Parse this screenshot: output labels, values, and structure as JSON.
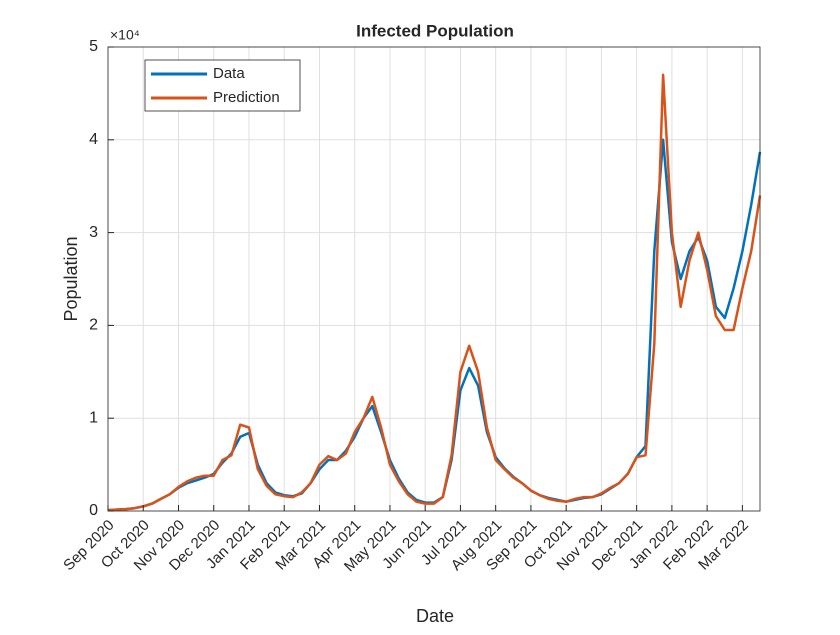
{
  "chart_data": {
    "type": "line",
    "title": "Infected Population",
    "x_label": "Date",
    "y_label": "Population",
    "y_multiplier": "×10⁴",
    "categories": [
      "Sep 2020",
      null,
      null,
      null,
      "Oct 2020",
      null,
      null,
      null,
      "Nov 2020",
      null,
      null,
      null,
      "Dec 2020",
      null,
      null,
      null,
      "Jan 2021",
      null,
      null,
      null,
      "Feb 2021",
      null,
      null,
      null,
      "Mar 2021",
      null,
      null,
      null,
      "Apr 2021",
      null,
      null,
      null,
      "May 2021",
      null,
      null,
      null,
      "Jun 2021",
      null,
      null,
      null,
      "Jul 2021",
      null,
      null,
      null,
      "Aug 2021",
      null,
      null,
      null,
      "Sep 2021",
      null,
      null,
      null,
      "Oct 2021",
      null,
      null,
      null,
      "Nov 2021",
      null,
      null,
      null,
      "Dec 2021",
      null,
      null,
      null,
      "Jan 2022",
      null,
      null,
      null,
      "Feb 2022",
      null,
      null,
      null,
      "Mar 2022",
      null,
      null
    ],
    "series": [
      {
        "name": "Data",
        "color": "#0072BD",
        "values": [
          100,
          150,
          200,
          300,
          500,
          800,
          1300,
          1800,
          2500,
          3000,
          3300,
          3600,
          4000,
          5200,
          6200,
          8000,
          8400,
          5000,
          3000,
          2000,
          1700,
          1600,
          1900,
          3000,
          4500,
          5500,
          5500,
          6500,
          8000,
          10000,
          11300,
          8500,
          5500,
          3500,
          2000,
          1200,
          900,
          900,
          1500,
          5500,
          13000,
          15400,
          13500,
          8500,
          5800,
          4600,
          3700,
          3000,
          2200,
          1700,
          1400,
          1200,
          1000,
          1200,
          1400,
          1500,
          1800,
          2400,
          3000,
          4000,
          5800,
          7000,
          28000,
          40000,
          29000,
          25000,
          28000,
          29500,
          27000,
          22000,
          20800,
          24000,
          28000,
          33000,
          38700
        ]
      },
      {
        "name": "Prediction",
        "color": "#D95319",
        "values": [
          100,
          150,
          200,
          300,
          500,
          800,
          1300,
          1800,
          2600,
          3200,
          3600,
          3800,
          3800,
          5500,
          6000,
          9300,
          9000,
          4500,
          2700,
          1800,
          1600,
          1500,
          2000,
          3000,
          5000,
          5900,
          5500,
          6200,
          8500,
          10000,
          12300,
          9000,
          5000,
          3200,
          1800,
          1000,
          800,
          800,
          1500,
          6000,
          15000,
          17800,
          15000,
          9000,
          5500,
          4500,
          3600,
          3000,
          2200,
          1700,
          1300,
          1100,
          1000,
          1300,
          1500,
          1500,
          1900,
          2500,
          3000,
          4000,
          5800,
          6000,
          18000,
          47000,
          30000,
          22000,
          27000,
          30000,
          26000,
          21000,
          19500,
          19500,
          24000,
          28000,
          34000
        ]
      }
    ],
    "ylim": [
      0,
      50000
    ],
    "yticks": [
      {
        "value": 0,
        "label": "0"
      },
      {
        "value": 10000,
        "label": "1"
      },
      {
        "value": 20000,
        "label": "2"
      },
      {
        "value": 30000,
        "label": "3"
      },
      {
        "value": 40000,
        "label": "4"
      },
      {
        "value": 50000,
        "label": "5"
      }
    ],
    "grid": true,
    "legend": "upper left"
  }
}
